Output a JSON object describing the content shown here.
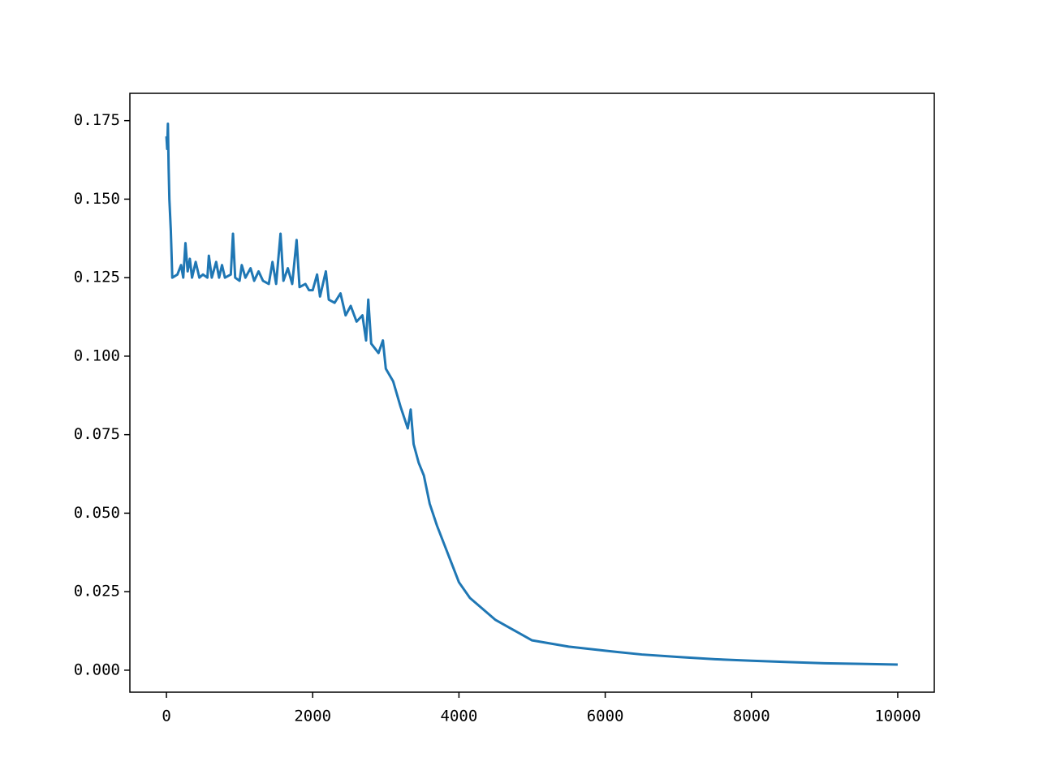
{
  "chart_data": {
    "type": "line",
    "color": "#1f77b4",
    "x": [
      0,
      10,
      20,
      30,
      40,
      60,
      80,
      150,
      200,
      230,
      260,
      290,
      320,
      350,
      400,
      450,
      500,
      560,
      580,
      620,
      680,
      720,
      760,
      800,
      880,
      910,
      940,
      1000,
      1030,
      1080,
      1150,
      1200,
      1260,
      1320,
      1400,
      1450,
      1500,
      1560,
      1600,
      1660,
      1720,
      1780,
      1820,
      1900,
      1950,
      2000,
      2060,
      2100,
      2180,
      2220,
      2300,
      2380,
      2450,
      2520,
      2600,
      2680,
      2730,
      2760,
      2800,
      2900,
      2960,
      3000,
      3100,
      3150,
      3200,
      3300,
      3340,
      3380,
      3450,
      3520,
      3600,
      3700,
      3800,
      3900,
      4000,
      4150,
      4300,
      4500,
      4700,
      5000,
      5500,
      6000,
      6500,
      7000,
      7500,
      8000,
      8500,
      9000,
      9500,
      10000
    ],
    "values": [
      0.17,
      0.166,
      0.174,
      0.16,
      0.15,
      0.14,
      0.125,
      0.126,
      0.129,
      0.125,
      0.136,
      0.127,
      0.131,
      0.125,
      0.13,
      0.125,
      0.126,
      0.125,
      0.132,
      0.125,
      0.13,
      0.125,
      0.129,
      0.125,
      0.126,
      0.139,
      0.125,
      0.124,
      0.129,
      0.125,
      0.128,
      0.124,
      0.127,
      0.124,
      0.123,
      0.13,
      0.123,
      0.139,
      0.124,
      0.128,
      0.123,
      0.137,
      0.122,
      0.123,
      0.121,
      0.121,
      0.126,
      0.119,
      0.127,
      0.118,
      0.117,
      0.12,
      0.113,
      0.116,
      0.111,
      0.113,
      0.105,
      0.118,
      0.104,
      0.101,
      0.105,
      0.096,
      0.092,
      0.088,
      0.084,
      0.077,
      0.083,
      0.072,
      0.066,
      0.062,
      0.053,
      0.046,
      0.04,
      0.034,
      0.028,
      0.023,
      0.02,
      0.016,
      0.0134,
      0.0095,
      0.0075,
      0.0062,
      0.005,
      0.0042,
      0.0035,
      0.003,
      0.0026,
      0.0022,
      0.002,
      0.0018
    ],
    "xlim": [
      -500,
      10500
    ],
    "ylim": [
      -0.007,
      0.1837
    ],
    "xticks": [
      0,
      2000,
      4000,
      6000,
      8000,
      10000
    ],
    "yticks": [
      {
        "value": 0,
        "label": "0.000"
      },
      0.025,
      {
        "value": 0.05,
        "label": "0.050"
      },
      0.075,
      {
        "value": 0.1,
        "label": "0.100"
      },
      0.125,
      {
        "value": 0.15,
        "label": "0.150"
      },
      0.175
    ]
  }
}
